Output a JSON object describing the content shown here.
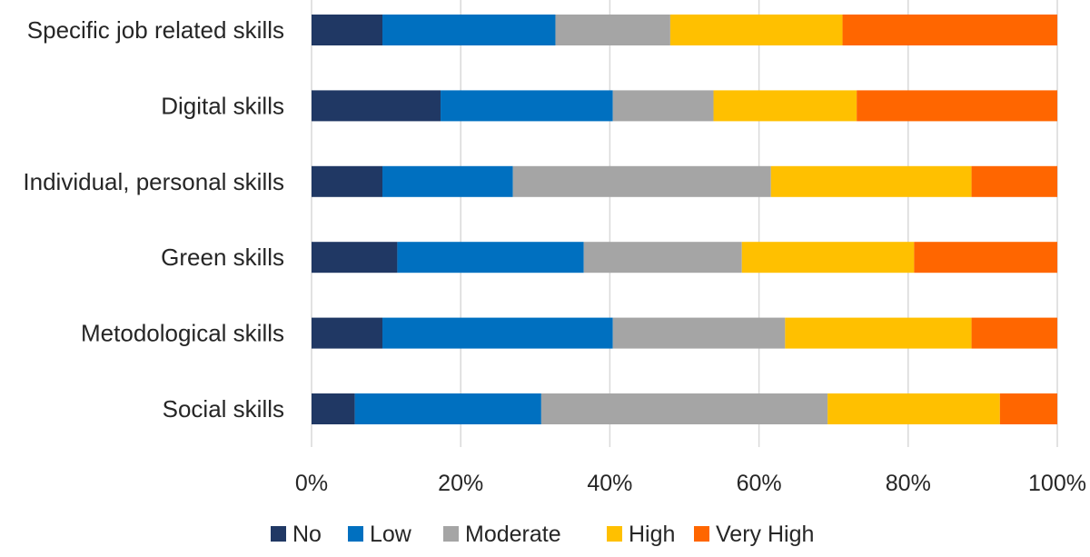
{
  "chart_data": {
    "type": "bar",
    "orientation": "horizontal",
    "stacked": "percent",
    "title": "",
    "xlabel": "",
    "ylabel": "",
    "xlim": [
      0,
      100
    ],
    "x_ticks": [
      "0%",
      "20%",
      "40%",
      "60%",
      "80%",
      "100%"
    ],
    "grid": true,
    "legend_position": "bottom",
    "categories": [
      "Specific job related skills",
      "Digital skills",
      "Individual, personal skills",
      "Green skills",
      "Metodological skills",
      "Social skills"
    ],
    "series": [
      {
        "name": "No",
        "color": "#203864",
        "values": [
          9.5,
          17.3,
          9.5,
          11.5,
          9.5,
          5.8
        ]
      },
      {
        "name": "Low",
        "color": "#0070C0",
        "values": [
          23.2,
          23.1,
          17.5,
          25.0,
          30.9,
          25.0
        ]
      },
      {
        "name": "Moderate",
        "color": "#A5A5A5",
        "values": [
          15.4,
          13.5,
          34.6,
          21.2,
          23.1,
          38.4
        ]
      },
      {
        "name": "High",
        "color": "#FFC000",
        "values": [
          23.1,
          19.2,
          26.9,
          23.1,
          25.0,
          23.1
        ]
      },
      {
        "name": "Very High",
        "color": "#FF6600",
        "values": [
          28.8,
          26.9,
          11.5,
          19.2,
          11.5,
          7.7
        ]
      }
    ]
  }
}
